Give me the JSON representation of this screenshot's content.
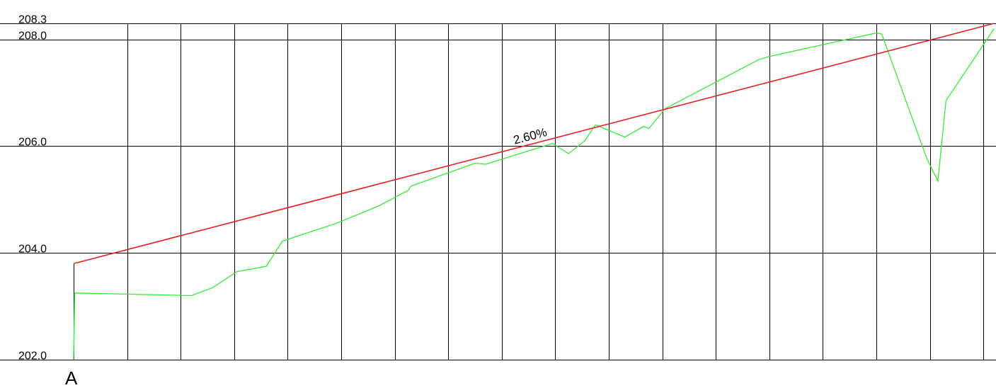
{
  "chart_data": {
    "type": "line",
    "title": "",
    "xlabel": "",
    "ylabel": "",
    "ylim": [
      202.0,
      208.3
    ],
    "y_ticks": [
      {
        "value": 208.3,
        "label": "208.3"
      },
      {
        "value": 208.0,
        "label": "208.0"
      },
      {
        "value": 206.0,
        "label": "206.0"
      },
      {
        "value": 204.0,
        "label": "204.0"
      },
      {
        "value": 202.0,
        "label": "202.0"
      }
    ],
    "x_grid_count": 17,
    "grid": true,
    "start_point_label": "A",
    "series": [
      {
        "color": "#33ee33",
        "x": [
          0,
          0.02,
          2.2,
          2.6,
          3.05,
          3.6,
          3.9,
          4.9,
          5.7,
          6.25,
          6.3,
          7.5,
          7.7,
          8.95,
          9.25,
          9.55,
          9.75,
          10.3,
          10.65,
          10.75,
          11.05,
          12.8,
          13.0,
          15.0,
          15.1,
          15.95,
          16.15,
          16.3,
          17.2
        ],
        "y": [
          202.0,
          203.25,
          203.2,
          203.35,
          203.65,
          203.75,
          204.22,
          204.55,
          204.88,
          205.17,
          205.25,
          205.68,
          205.66,
          206.05,
          205.86,
          206.1,
          206.4,
          206.17,
          206.37,
          206.33,
          206.7,
          207.62,
          207.68,
          208.12,
          208.1,
          205.75,
          205.35,
          206.85,
          208.2
        ]
      }
    ],
    "trend_line": {
      "color": "#e82020",
      "label": "2.60%",
      "x": [
        0,
        17.2
      ],
      "y": [
        203.8,
        208.3
      ]
    }
  }
}
